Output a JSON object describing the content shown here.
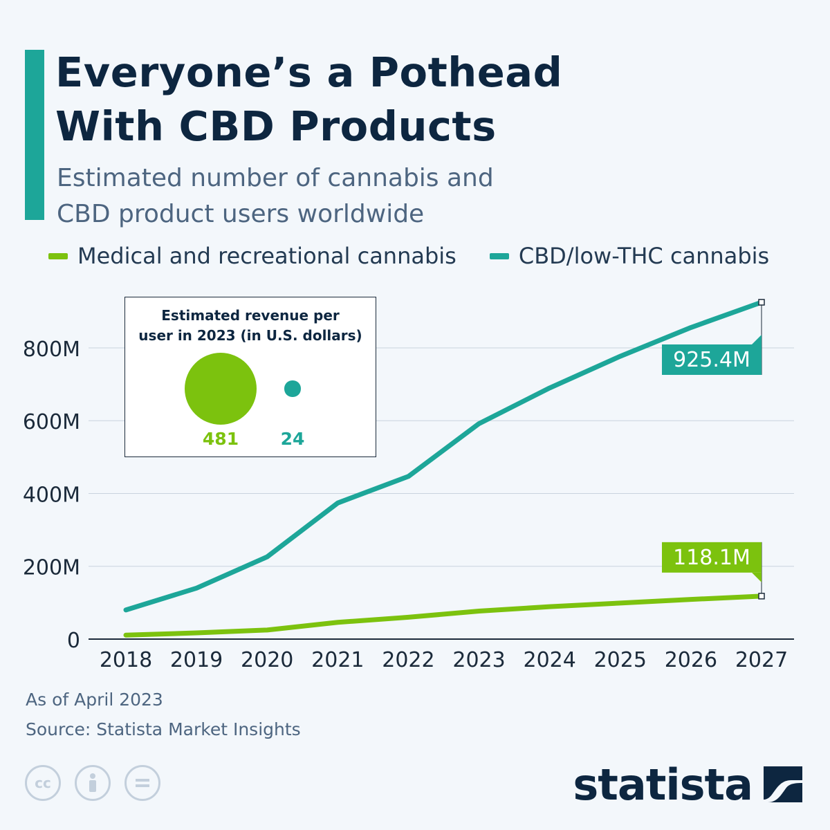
{
  "header": {
    "title_lines": [
      "Everyone’s a Pothead",
      "With CBD Products"
    ],
    "subtitle_lines": [
      "Estimated number of cannabis and",
      "CBD product users worldwide"
    ]
  },
  "legend": [
    {
      "label": "Medical and recreational cannabis",
      "color": "#7cc20e"
    },
    {
      "label": "CBD/low-THC cannabis",
      "color": "#1da699"
    }
  ],
  "chart_data": {
    "type": "line",
    "title": "Everyone’s a Pothead With CBD Products",
    "subtitle": "Estimated number of cannabis and CBD product users worldwide",
    "categories": [
      "2018",
      "2019",
      "2020",
      "2021",
      "2022",
      "2023",
      "2024",
      "2025",
      "2026",
      "2027"
    ],
    "series": [
      {
        "name": "Medical and recreational cannabis",
        "color": "#7cc20e",
        "values": [
          11,
          17,
          25,
          46,
          60,
          77,
          89,
          99,
          109,
          118.1
        ]
      },
      {
        "name": "CBD/low-THC cannabis",
        "color": "#1da699",
        "values": [
          80,
          140,
          226,
          374,
          447,
          592,
          690,
          777,
          856,
          925.4
        ]
      }
    ],
    "ylim": [
      0,
      925.4
    ],
    "yticks": [
      {
        "value": 0,
        "label": "0"
      },
      {
        "value": 200,
        "label": "200M"
      },
      {
        "value": 400,
        "label": "400M"
      },
      {
        "value": 600,
        "label": "600M"
      },
      {
        "value": 800,
        "label": "800M"
      }
    ],
    "grid": true,
    "value_labels": [
      {
        "series": 1,
        "text": "925.4M"
      },
      {
        "series": 0,
        "text": "118.1M"
      }
    ]
  },
  "inset": {
    "title_lines": [
      "Estimated revenue per",
      "user in 2023 (in U.S. dollars)"
    ],
    "bubbles": [
      {
        "label": "481",
        "value": 481,
        "color": "#7cc20e"
      },
      {
        "label": "24",
        "value": 24,
        "color": "#1da699"
      }
    ]
  },
  "footer": {
    "note": "As of April 2023",
    "source": "Source: Statista Market Insights",
    "license_icons": [
      "cc-icon",
      "attribution-icon",
      "no-derivatives-icon"
    ],
    "brand": "statista"
  }
}
